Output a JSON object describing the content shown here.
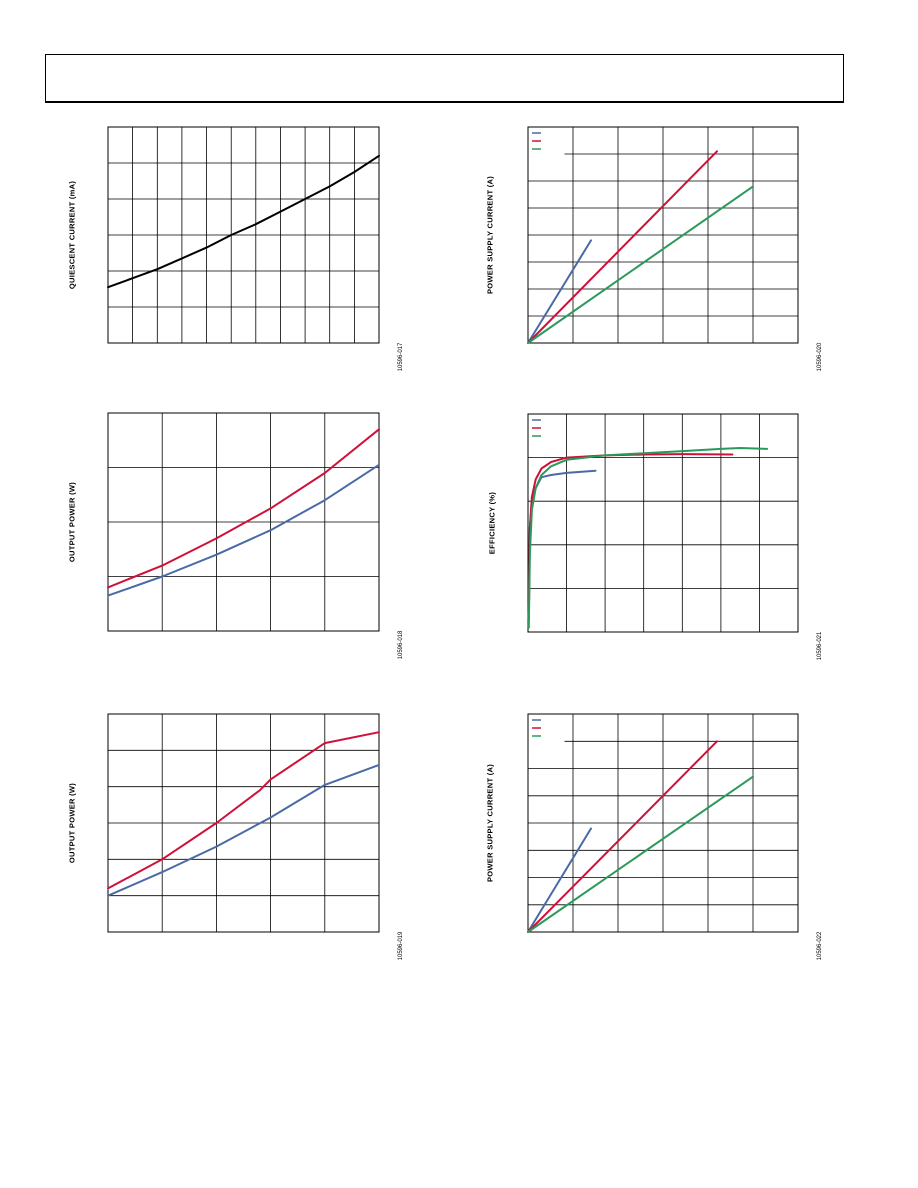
{
  "page": {
    "header_title": ""
  },
  "colors": {
    "blue": "#4a6aa5",
    "red": "#d0103a",
    "green": "#2a9a5a",
    "black": "#000000"
  },
  "chart_data": [
    {
      "id": "quiescent-current",
      "type": "line",
      "ylabel": "QUIESCENT CURRENT (mA)",
      "figure_id": "10596-017",
      "grid": {
        "cols": 11,
        "rows": 6
      },
      "xlim": [
        0,
        11
      ],
      "ylim": [
        0,
        6
      ],
      "series": [
        {
          "color": "black",
          "x": [
            0,
            1,
            2,
            3,
            4,
            5,
            6,
            7,
            8,
            9,
            10,
            11
          ],
          "y": [
            1.55,
            1.8,
            2.05,
            2.35,
            2.65,
            3.0,
            3.3,
            3.65,
            4.0,
            4.35,
            4.75,
            5.2
          ]
        }
      ]
    },
    {
      "id": "power-supply-current-1",
      "type": "line",
      "ylabel": "POWER SUPPLY CURRENT (A)",
      "figure_id": "10596-020",
      "legend": {
        "position": "top-left",
        "entries": [
          "blue",
          "red",
          "green"
        ]
      },
      "grid": {
        "cols": 6,
        "rows": 8
      },
      "xlim": [
        0,
        6
      ],
      "ylim": [
        0,
        8
      ],
      "series": [
        {
          "color": "blue",
          "x": [
            0,
            1.4
          ],
          "y": [
            0,
            3.8
          ]
        },
        {
          "color": "red",
          "x": [
            0,
            4.2
          ],
          "y": [
            0,
            7.1
          ]
        },
        {
          "color": "green",
          "x": [
            0,
            5.0
          ],
          "y": [
            0,
            5.8
          ]
        }
      ]
    },
    {
      "id": "output-power-1",
      "type": "line",
      "ylabel": "OUTPUT POWER (W)",
      "figure_id": "10596-018",
      "grid": {
        "cols": 5,
        "rows": 4
      },
      "xlim": [
        0,
        5
      ],
      "ylim": [
        0,
        4
      ],
      "series": [
        {
          "color": "red",
          "x": [
            0,
            1,
            2,
            3,
            4,
            5
          ],
          "y": [
            0.8,
            1.2,
            1.7,
            2.25,
            2.9,
            3.7
          ]
        },
        {
          "color": "blue",
          "x": [
            0,
            1,
            2,
            3,
            4,
            5
          ],
          "y": [
            0.65,
            1.0,
            1.4,
            1.85,
            2.4,
            3.05
          ]
        }
      ]
    },
    {
      "id": "efficiency",
      "type": "line",
      "ylabel": "EFFICIENCY (%)",
      "figure_id": "10596-021",
      "legend": {
        "position": "top-left",
        "entries": [
          "blue",
          "red",
          "green"
        ]
      },
      "grid": {
        "cols": 7,
        "rows": 5
      },
      "xlim": [
        0,
        7
      ],
      "ylim": [
        0,
        5
      ],
      "series": [
        {
          "color": "blue",
          "x": [
            0.02,
            0.05,
            0.1,
            0.2,
            0.35,
            0.6,
            1.0,
            1.75
          ],
          "y": [
            0.3,
            2.4,
            3.0,
            3.3,
            3.55,
            3.6,
            3.65,
            3.7
          ]
        },
        {
          "color": "red",
          "x": [
            0.02,
            0.05,
            0.1,
            0.2,
            0.35,
            0.6,
            1.0,
            2.0,
            3.0,
            4.0,
            5.3
          ],
          "y": [
            0.3,
            2.4,
            3.1,
            3.5,
            3.75,
            3.9,
            4.0,
            4.05,
            4.07,
            4.08,
            4.07
          ]
        },
        {
          "color": "green",
          "x": [
            0.02,
            0.05,
            0.1,
            0.2,
            0.35,
            0.6,
            1.0,
            2.0,
            3.0,
            4.0,
            5.0,
            5.5,
            6.2
          ],
          "y": [
            0.1,
            1.8,
            2.8,
            3.3,
            3.6,
            3.8,
            3.95,
            4.05,
            4.1,
            4.15,
            4.2,
            4.22,
            4.2
          ]
        }
      ]
    },
    {
      "id": "output-power-2",
      "type": "line",
      "ylabel": "OUTPUT POWER (W)",
      "figure_id": "10596-019",
      "grid": {
        "cols": 5,
        "rows": 6
      },
      "xlim": [
        0,
        5
      ],
      "ylim": [
        0,
        6
      ],
      "series": [
        {
          "color": "red",
          "x": [
            0,
            1,
            2,
            2.8,
            3,
            4,
            5
          ],
          "y": [
            1.2,
            2.0,
            3.0,
            3.9,
            4.2,
            5.2,
            5.5
          ]
        },
        {
          "color": "blue",
          "x": [
            0,
            1,
            2,
            3,
            4,
            5
          ],
          "y": [
            1.0,
            1.65,
            2.35,
            3.15,
            4.05,
            4.6
          ]
        }
      ]
    },
    {
      "id": "power-supply-current-2",
      "type": "line",
      "ylabel": "POWER SUPPLY CURRENT (A)",
      "figure_id": "10596-022",
      "legend": {
        "position": "top-left",
        "entries": [
          "blue",
          "red",
          "green"
        ]
      },
      "grid": {
        "cols": 6,
        "rows": 8
      },
      "xlim": [
        0,
        6
      ],
      "ylim": [
        0,
        8
      ],
      "series": [
        {
          "color": "blue",
          "x": [
            0,
            1.4
          ],
          "y": [
            0,
            3.8
          ]
        },
        {
          "color": "red",
          "x": [
            0,
            4.2
          ],
          "y": [
            0,
            7.0
          ]
        },
        {
          "color": "green",
          "x": [
            0,
            5.0
          ],
          "y": [
            0,
            5.7
          ]
        }
      ]
    }
  ]
}
